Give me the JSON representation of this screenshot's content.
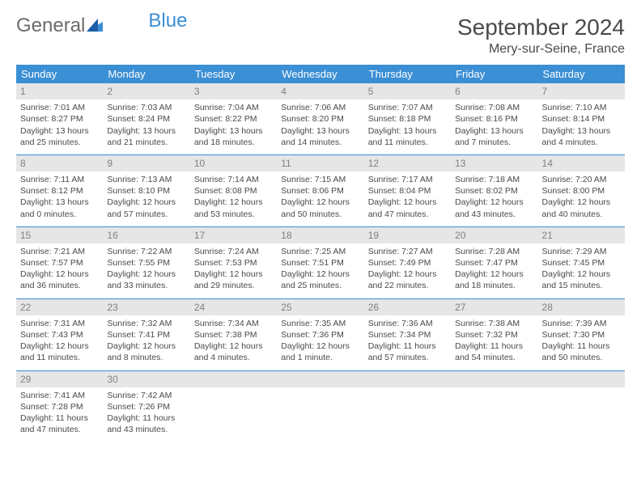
{
  "brand": {
    "part1": "General",
    "part2": "Blue"
  },
  "title": "September 2024",
  "location": "Mery-sur-Seine, France",
  "colors": {
    "header_bg": "#3b8fd4",
    "header_text": "#ffffff",
    "daynum_bg": "#e6e6e6",
    "daynum_text": "#808080",
    "body_text": "#4a4a4a",
    "row_divider": "#3b8fd4"
  },
  "day_headers": [
    "Sunday",
    "Monday",
    "Tuesday",
    "Wednesday",
    "Thursday",
    "Friday",
    "Saturday"
  ],
  "weeks": [
    [
      {
        "n": "1",
        "sunrise": "7:01 AM",
        "sunset": "8:27 PM",
        "dl": "13 hours and 25 minutes."
      },
      {
        "n": "2",
        "sunrise": "7:03 AM",
        "sunset": "8:24 PM",
        "dl": "13 hours and 21 minutes."
      },
      {
        "n": "3",
        "sunrise": "7:04 AM",
        "sunset": "8:22 PM",
        "dl": "13 hours and 18 minutes."
      },
      {
        "n": "4",
        "sunrise": "7:06 AM",
        "sunset": "8:20 PM",
        "dl": "13 hours and 14 minutes."
      },
      {
        "n": "5",
        "sunrise": "7:07 AM",
        "sunset": "8:18 PM",
        "dl": "13 hours and 11 minutes."
      },
      {
        "n": "6",
        "sunrise": "7:08 AM",
        "sunset": "8:16 PM",
        "dl": "13 hours and 7 minutes."
      },
      {
        "n": "7",
        "sunrise": "7:10 AM",
        "sunset": "8:14 PM",
        "dl": "13 hours and 4 minutes."
      }
    ],
    [
      {
        "n": "8",
        "sunrise": "7:11 AM",
        "sunset": "8:12 PM",
        "dl": "13 hours and 0 minutes."
      },
      {
        "n": "9",
        "sunrise": "7:13 AM",
        "sunset": "8:10 PM",
        "dl": "12 hours and 57 minutes."
      },
      {
        "n": "10",
        "sunrise": "7:14 AM",
        "sunset": "8:08 PM",
        "dl": "12 hours and 53 minutes."
      },
      {
        "n": "11",
        "sunrise": "7:15 AM",
        "sunset": "8:06 PM",
        "dl": "12 hours and 50 minutes."
      },
      {
        "n": "12",
        "sunrise": "7:17 AM",
        "sunset": "8:04 PM",
        "dl": "12 hours and 47 minutes."
      },
      {
        "n": "13",
        "sunrise": "7:18 AM",
        "sunset": "8:02 PM",
        "dl": "12 hours and 43 minutes."
      },
      {
        "n": "14",
        "sunrise": "7:20 AM",
        "sunset": "8:00 PM",
        "dl": "12 hours and 40 minutes."
      }
    ],
    [
      {
        "n": "15",
        "sunrise": "7:21 AM",
        "sunset": "7:57 PM",
        "dl": "12 hours and 36 minutes."
      },
      {
        "n": "16",
        "sunrise": "7:22 AM",
        "sunset": "7:55 PM",
        "dl": "12 hours and 33 minutes."
      },
      {
        "n": "17",
        "sunrise": "7:24 AM",
        "sunset": "7:53 PM",
        "dl": "12 hours and 29 minutes."
      },
      {
        "n": "18",
        "sunrise": "7:25 AM",
        "sunset": "7:51 PM",
        "dl": "12 hours and 25 minutes."
      },
      {
        "n": "19",
        "sunrise": "7:27 AM",
        "sunset": "7:49 PM",
        "dl": "12 hours and 22 minutes."
      },
      {
        "n": "20",
        "sunrise": "7:28 AM",
        "sunset": "7:47 PM",
        "dl": "12 hours and 18 minutes."
      },
      {
        "n": "21",
        "sunrise": "7:29 AM",
        "sunset": "7:45 PM",
        "dl": "12 hours and 15 minutes."
      }
    ],
    [
      {
        "n": "22",
        "sunrise": "7:31 AM",
        "sunset": "7:43 PM",
        "dl": "12 hours and 11 minutes."
      },
      {
        "n": "23",
        "sunrise": "7:32 AM",
        "sunset": "7:41 PM",
        "dl": "12 hours and 8 minutes."
      },
      {
        "n": "24",
        "sunrise": "7:34 AM",
        "sunset": "7:38 PM",
        "dl": "12 hours and 4 minutes."
      },
      {
        "n": "25",
        "sunrise": "7:35 AM",
        "sunset": "7:36 PM",
        "dl": "12 hours and 1 minute."
      },
      {
        "n": "26",
        "sunrise": "7:36 AM",
        "sunset": "7:34 PM",
        "dl": "11 hours and 57 minutes."
      },
      {
        "n": "27",
        "sunrise": "7:38 AM",
        "sunset": "7:32 PM",
        "dl": "11 hours and 54 minutes."
      },
      {
        "n": "28",
        "sunrise": "7:39 AM",
        "sunset": "7:30 PM",
        "dl": "11 hours and 50 minutes."
      }
    ],
    [
      {
        "n": "29",
        "sunrise": "7:41 AM",
        "sunset": "7:28 PM",
        "dl": "11 hours and 47 minutes."
      },
      {
        "n": "30",
        "sunrise": "7:42 AM",
        "sunset": "7:26 PM",
        "dl": "11 hours and 43 minutes."
      },
      null,
      null,
      null,
      null,
      null
    ]
  ],
  "labels": {
    "sunrise": "Sunrise: ",
    "sunset": "Sunset: ",
    "daylight": "Daylight: "
  }
}
